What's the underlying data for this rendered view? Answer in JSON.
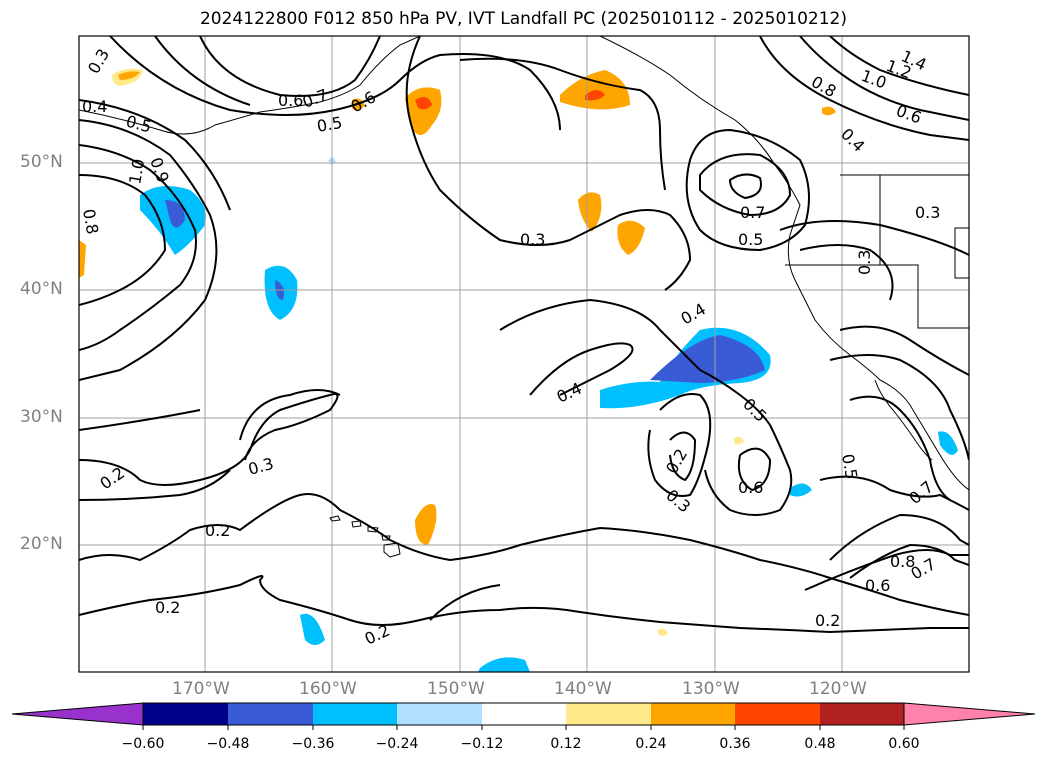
{
  "title": "2024122800 F012 850 hPa PV, IVT Landfall PC (2025010112 - 2025010212)",
  "lat_labels": [
    "50°N",
    "40°N",
    "30°N",
    "20°N"
  ],
  "lon_labels": [
    "170°W",
    "160°W",
    "150°W",
    "140°W",
    "130°W",
    "120°W"
  ],
  "colorbar": {
    "ticks": [
      "−0.60",
      "−0.48",
      "−0.36",
      "−0.24",
      "−0.12",
      "0.12",
      "0.24",
      "0.36",
      "0.48",
      "0.60"
    ],
    "colors": [
      "#9932cc",
      "#00008b",
      "#3a5bd6",
      "#00bfff",
      "#b0e0ff",
      "#ffffff",
      "#ffe98a",
      "#ffa500",
      "#ff4500",
      "#b22222",
      "#ff82aa"
    ]
  },
  "contour_labels": [
    "0.3",
    "0.4",
    "0.5",
    "0.6",
    "0.7",
    "0.8",
    "1.0",
    "1.2",
    "1.4",
    "0.2"
  ],
  "map_style": {
    "pv_contour_color": "#000000",
    "gridline_color": "#a0a0a0",
    "coastline_color": "#000000"
  }
}
